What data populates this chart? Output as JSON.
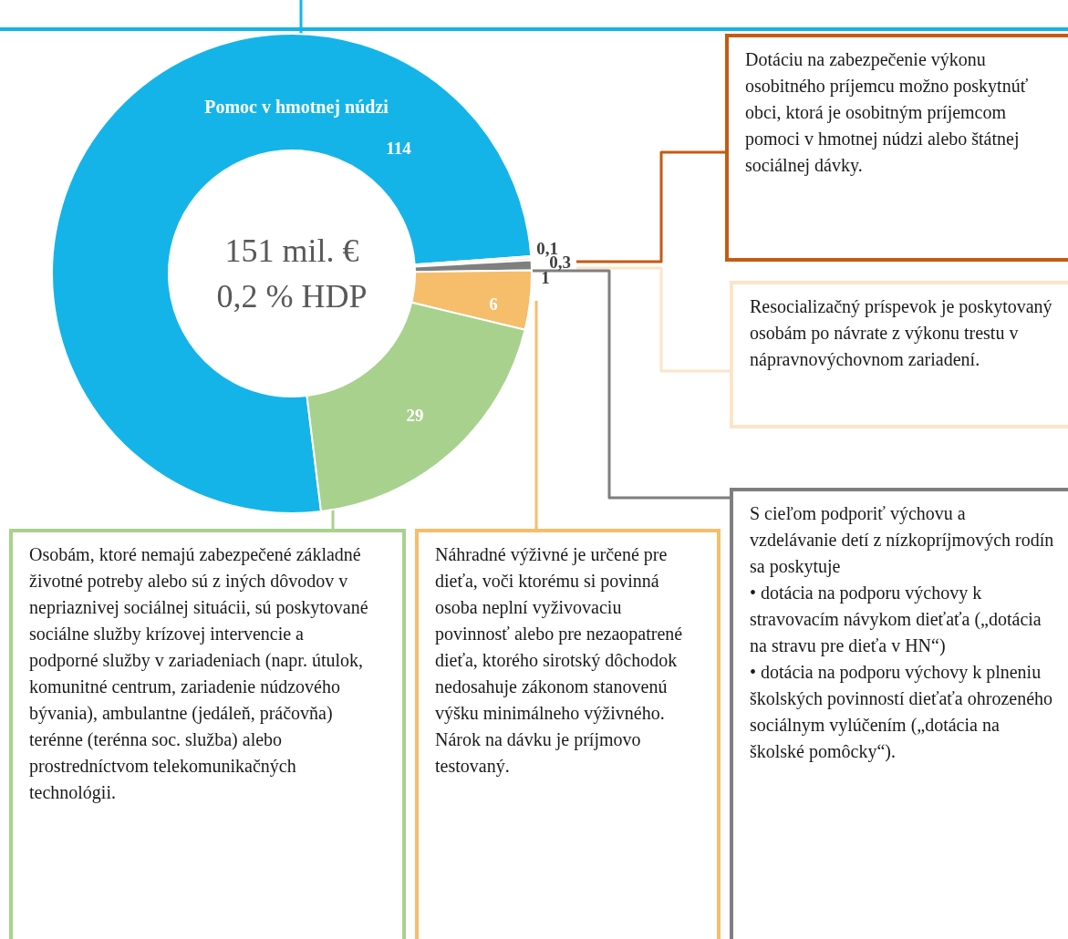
{
  "chart_data": {
    "type": "donut",
    "categories": [
      "Pomoc v hmotnej núdzi",
      null,
      null,
      null,
      null,
      null
    ],
    "values": [
      114,
      0.1,
      0.3,
      1,
      6,
      29
    ],
    "colors": [
      "#15b4e8",
      "#c55a11",
      "#fbe5c8",
      "#7f7f7f",
      "#f6bd6a",
      "#a9d18e"
    ],
    "value_labels": [
      "114",
      "0,1",
      "0,3",
      "1",
      "6",
      "29"
    ],
    "annotations": [
      "151 mil. €\n0,2 % HDP",
      "Dotáciu na zabezpečenie výkonu osobitného príjemcu možno poskytnúť obci, ktorá je osobitným príjemcom pomoci v hmotnej núdzi alebo štátnej sociálnej dávky.",
      "Resocializačný príspevok je poskytovaný osobám po návrate z výkonu trestu v nápravnovýchovnom zariadení.",
      "S cieľom podporiť výchovu a vzdelávanie detí z nízkopríjmových rodín sa poskytuje\n• dotácia na podporu výchovy k stravovacím návykom dieťaťa („dotácia na stravu pre dieťa v HN“)\n• dotácia na podporu výchovy k plneniu školských povinností dieťaťa ohrozeného sociálnym vylúčením („dotácia na školské pomôcky“).",
      "Náhradné výživné je určené pre dieťa, voči ktorému si povinná osoba neplní vyživovaciu povinnosť alebo pre nezaopatrené dieťa, ktorého sirotský dôchodok nedosahuje zákonom stanovenú výšku minimálneho výživného. Nárok na dávku je príjmovo testovaný.",
      "Osobám, ktoré nemajú zabezpečené základné životné potreby alebo sú z iných dôvodov v nepriaznivej sociálnej situácii, sú poskytované sociálne služby krízovej intervencie a podporné služby v zariadeniach (napr. útulok, komunitné centrum, zariadenie núdzového bývania), ambulantne (jedáleň, práčovňa) terénne (terénna soc. služba) alebo prostredníctvom telekomunikačných technológii."
    ]
  }
}
